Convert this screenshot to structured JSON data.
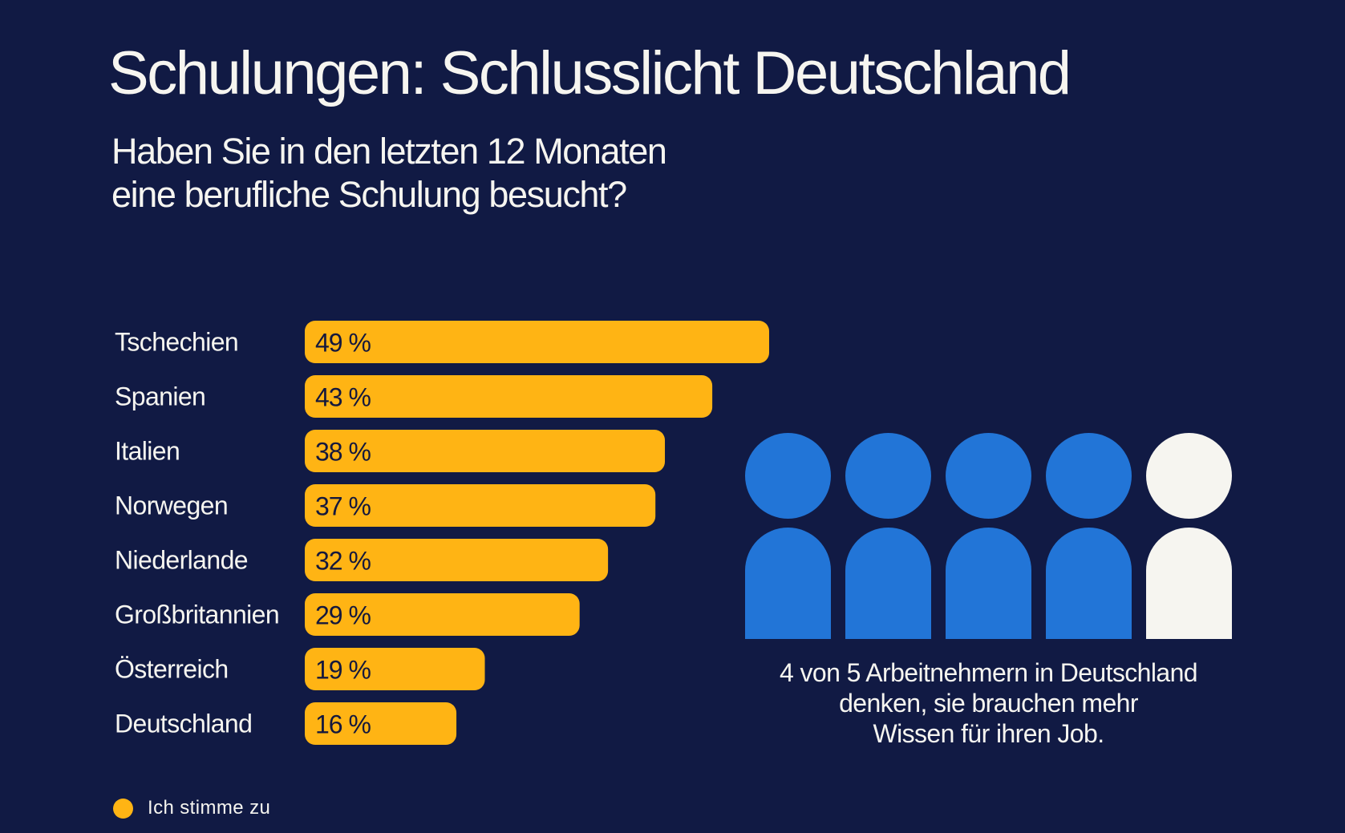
{
  "colors": {
    "background": "#111a44",
    "bar": "#ffb414",
    "bar_text": "#14183d",
    "person_highlight": "#2275d7",
    "person_other": "#f6f5f0",
    "text": "#f6f5f0"
  },
  "header": {
    "title": "Schulungen: Schlusslicht Deutschland",
    "subtitle": "Haben Sie in den letzten 12 Monaten\neine berufliche Schulung besucht?"
  },
  "chart_data": {
    "type": "bar",
    "orientation": "horizontal",
    "title": "Schulungen: Schlusslicht Deutschland",
    "subtitle": "Haben Sie in den letzten 12 Monaten eine berufliche Schulung besucht?",
    "categories": [
      "Tschechien",
      "Spanien",
      "Italien",
      "Norwegen",
      "Niederlande",
      "Großbritannien",
      "Österreich",
      "Deutschland"
    ],
    "values": [
      49,
      43,
      38,
      37,
      32,
      29,
      19,
      16
    ],
    "value_labels": [
      "49 %",
      "43 %",
      "38 %",
      "37 %",
      "32 %",
      "29 %",
      "19 %",
      "16 %"
    ],
    "unit": "%",
    "xlabel": "",
    "ylabel": "",
    "xlim": [
      0,
      49
    ],
    "grid": false,
    "legend": [
      {
        "label": "Ich stimme zu",
        "color": "#ffb414"
      }
    ],
    "legend_position": "bottom-left"
  },
  "infographic": {
    "people_total": 5,
    "people_highlighted": 4,
    "icon": "person-icon",
    "caption": "4 von 5 Arbeitnehmern in Deutschland\ndenken, sie brauchen mehr\nWissen für ihren Job."
  },
  "legend": {
    "label": "Ich stimme zu"
  }
}
